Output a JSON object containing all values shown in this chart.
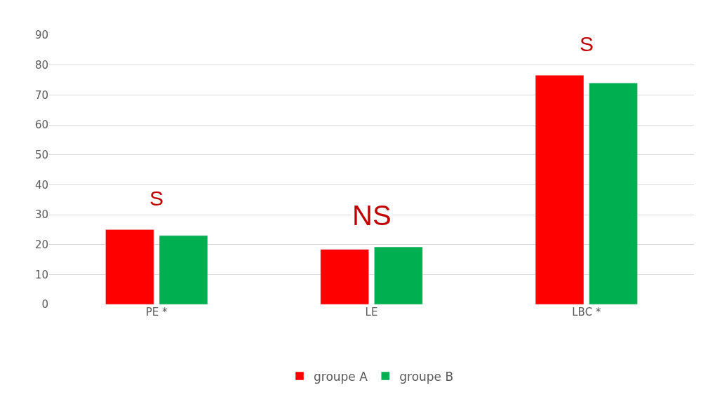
{
  "chart_data": {
    "type": "bar",
    "categories": [
      "PE *",
      "LE",
      "LBC *"
    ],
    "series": [
      {
        "name": "groupe A",
        "color": "#ff0000",
        "values": [
          25,
          18.4,
          76.6
        ]
      },
      {
        "name": "groupe B",
        "color": "#00b050",
        "values": [
          23,
          19.2,
          74
        ]
      }
    ],
    "ylim": [
      0,
      90
    ],
    "yticks": [
      0,
      10,
      20,
      30,
      40,
      50,
      60,
      70,
      80,
      90
    ],
    "grid": "y",
    "legend": "bottom",
    "annotations": [
      "S",
      "NS",
      "S"
    ]
  }
}
